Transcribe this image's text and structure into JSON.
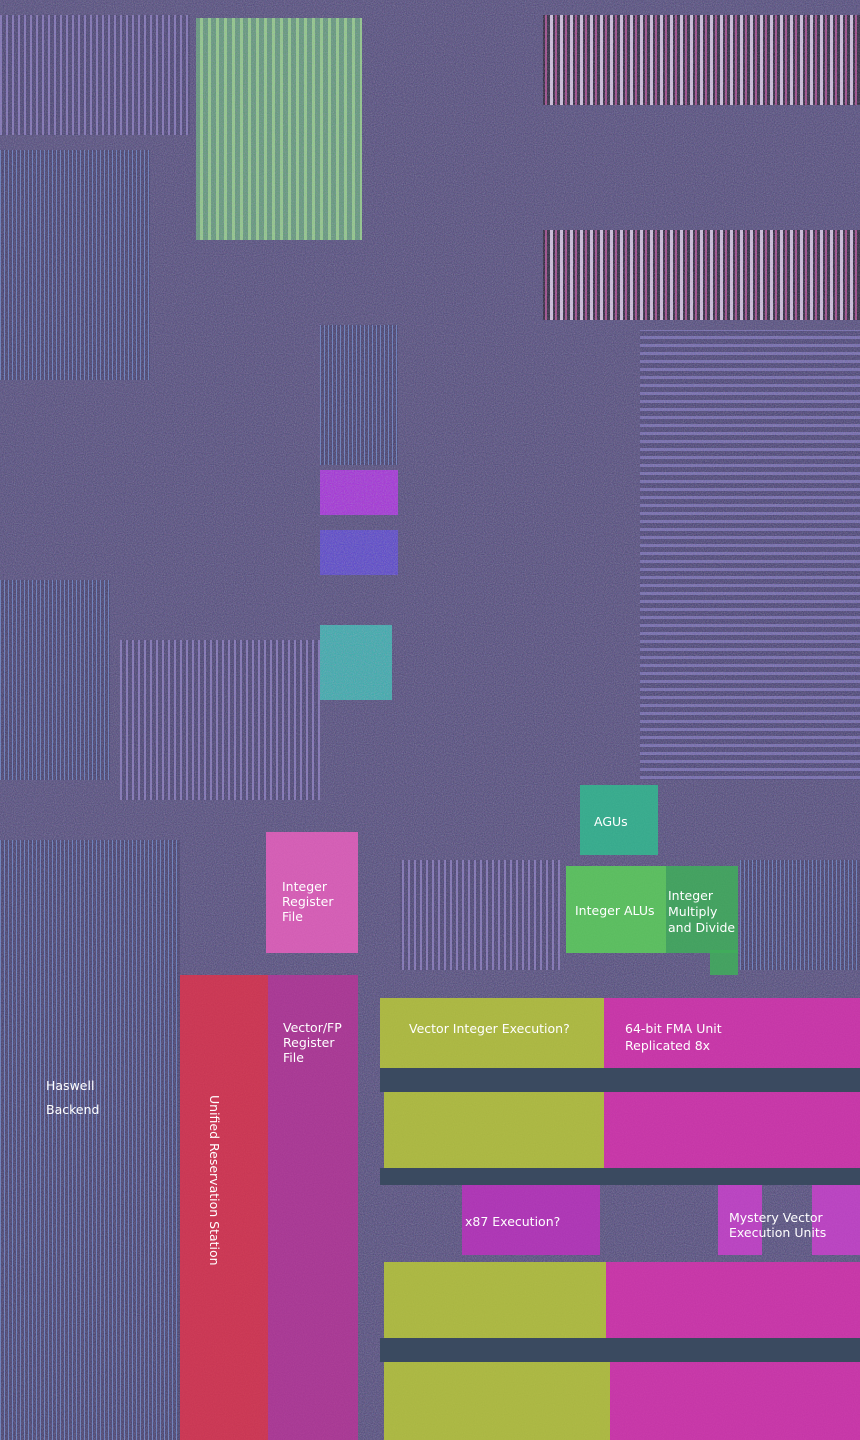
{
  "title": {
    "lines": [
      "Haswell",
      "Backend"
    ]
  },
  "regions": {
    "agus": {
      "lines": [
        "AGUs"
      ]
    },
    "integer_alus": {
      "lines": [
        "Integer ALUs"
      ]
    },
    "integer_multiply_divide": {
      "lines": [
        "Integer",
        "Multiply",
        "and Divide"
      ]
    },
    "integer_register_file": {
      "lines": [
        "Integer",
        "Register",
        "File"
      ]
    },
    "vector_fp_register_file": {
      "lines": [
        "Vector/FP",
        "Register",
        "File"
      ]
    },
    "unified_reservation_station": {
      "lines": [
        "Unified Reservation Station"
      ]
    },
    "vector_integer_execution": {
      "lines": [
        "Vector Integer Execution?"
      ]
    },
    "fma_unit": {
      "lines": [
        "64-bit FMA Unit",
        "Replicated 8x"
      ]
    },
    "x87_execution": {
      "lines": [
        "x87 Execution?"
      ]
    },
    "mystery_vector": {
      "lines": [
        "Mystery Vector",
        "Execution Units"
      ]
    }
  }
}
